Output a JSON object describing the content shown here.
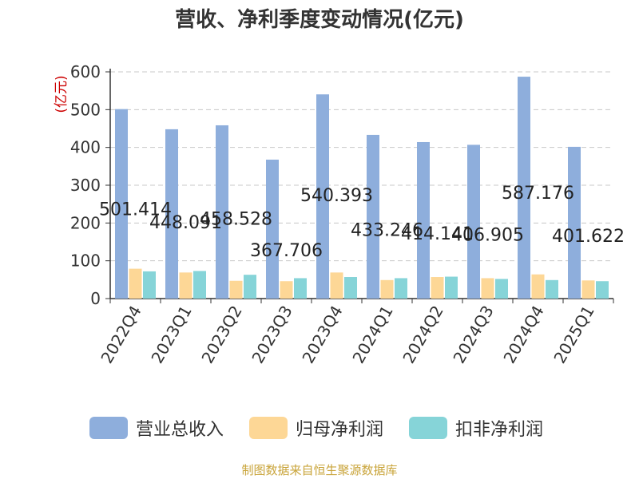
{
  "chart_data": {
    "type": "bar",
    "title": "营收、净利季度变动情况(亿元)",
    "ylabel": "(亿元)",
    "ylim": [
      0,
      600
    ],
    "yticks": [
      0,
      100,
      200,
      300,
      400,
      500,
      600
    ],
    "grid": true,
    "legend_position": "bottom",
    "categories": [
      "2022Q4",
      "2023Q1",
      "2023Q2",
      "2023Q3",
      "2023Q4",
      "2024Q1",
      "2024Q2",
      "2024Q3",
      "2024Q4",
      "2025Q1"
    ],
    "series": [
      {
        "name": "营业总收入",
        "color": "#8eaedc",
        "values": [
          501.414,
          448.091,
          458.528,
          367.706,
          540.393,
          433.246,
          414.141,
          406.905,
          587.176,
          401.622
        ],
        "data_labels": [
          "501.414",
          "448.091",
          "458.528",
          "367.706",
          "540.393",
          "433.246",
          "414.141",
          "406.905",
          "587.176",
          "401.622"
        ]
      },
      {
        "name": "归母净利润",
        "color": "#fdd796",
        "values": [
          79,
          69,
          47,
          46,
          69,
          49,
          57,
          54,
          64,
          48
        ]
      },
      {
        "name": "扣非净利润",
        "color": "#86d4d8",
        "values": [
          72,
          73,
          63,
          54,
          57,
          54,
          58,
          52,
          49,
          46
        ]
      }
    ],
    "source": "制图数据来自恒生聚源数据库"
  }
}
